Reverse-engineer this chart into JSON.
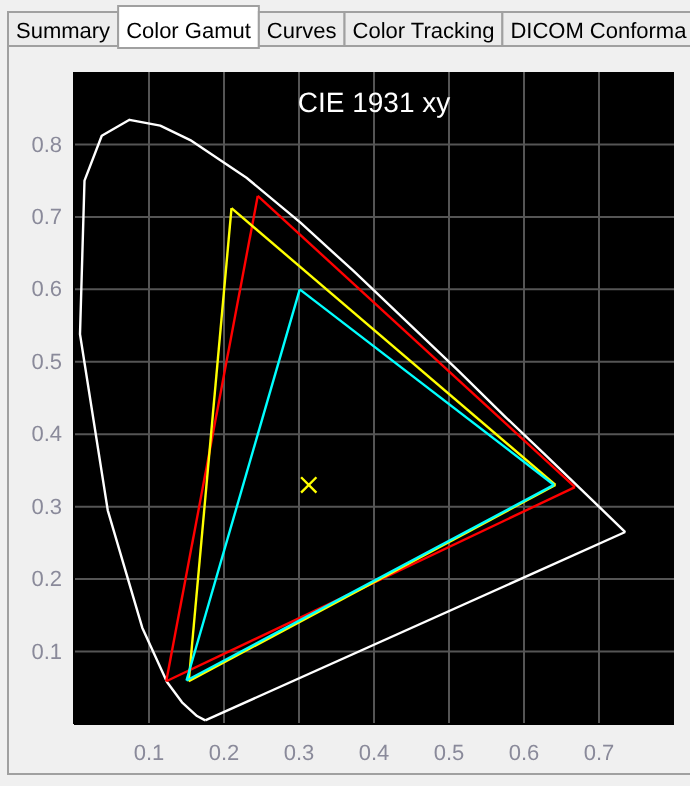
{
  "chart_data": {
    "type": "line",
    "title": "CIE 1931 xy",
    "annotations": [
      "Summary",
      "Color Gamut",
      "Curves",
      "Color Tracking",
      "DICOM Conforma"
    ],
    "xlim": [
      0,
      0.8
    ],
    "ylim": [
      0,
      0.9
    ],
    "xticks": [
      0.1,
      0.2,
      0.3,
      0.4,
      0.5,
      0.6,
      0.7
    ],
    "yticks": [
      0.1,
      0.2,
      0.3,
      0.4,
      0.5,
      0.6,
      0.7,
      0.8
    ],
    "grid": true,
    "legend": false,
    "marker": "none",
    "line_style": "solid",
    "series": [
      {
        "color": "#ffffff",
        "x": [
          0.175,
          0.164,
          0.144,
          0.124,
          0.091,
          0.045,
          0.008,
          0.014,
          0.037,
          0.074,
          0.115,
          0.155,
          0.23,
          0.302,
          0.373,
          0.444,
          0.513,
          0.575,
          0.627,
          0.692,
          0.735
        ],
        "values": [
          0.005,
          0.011,
          0.03,
          0.058,
          0.133,
          0.295,
          0.538,
          0.75,
          0.812,
          0.834,
          0.826,
          0.806,
          0.754,
          0.692,
          0.625,
          0.555,
          0.487,
          0.424,
          0.373,
          0.308,
          0.265
        ]
      },
      {
        "color": "#ffffff",
        "x": [
          0.175,
          0.735
        ],
        "values": [
          0.005,
          0.265
        ]
      },
      {
        "color": "#ff0000",
        "x": [
          0.123,
          0.245
        ],
        "values": [
          0.059,
          0.729
        ]
      },
      {
        "color": "#ff0000",
        "x": [
          0.245,
          0.668
        ],
        "values": [
          0.729,
          0.327
        ]
      },
      {
        "color": "#ff0000",
        "x": [
          0.123,
          0.668
        ],
        "values": [
          0.059,
          0.327
        ]
      },
      {
        "color": "#ffff00",
        "x": [
          0.153,
          0.21
        ],
        "values": [
          0.059,
          0.712
        ]
      },
      {
        "color": "#ffff00",
        "x": [
          0.21,
          0.642
        ],
        "values": [
          0.712,
          0.33
        ]
      },
      {
        "color": "#ffff00",
        "x": [
          0.153,
          0.642
        ],
        "values": [
          0.059,
          0.33
        ]
      },
      {
        "color": "#00ffff",
        "x": [
          0.15,
          0.301
        ],
        "values": [
          0.06,
          0.6
        ]
      },
      {
        "color": "#00ffff",
        "x": [
          0.301,
          0.64
        ],
        "values": [
          0.6,
          0.33
        ]
      },
      {
        "color": "#00ffff",
        "x": [
          0.15,
          0.64
        ],
        "values": [
          0.06,
          0.33
        ]
      },
      {
        "type": "scatter",
        "marker": "cross",
        "color": "#ffff00",
        "x": [
          0.313
        ],
        "values": [
          0.33
        ]
      }
    ]
  }
}
